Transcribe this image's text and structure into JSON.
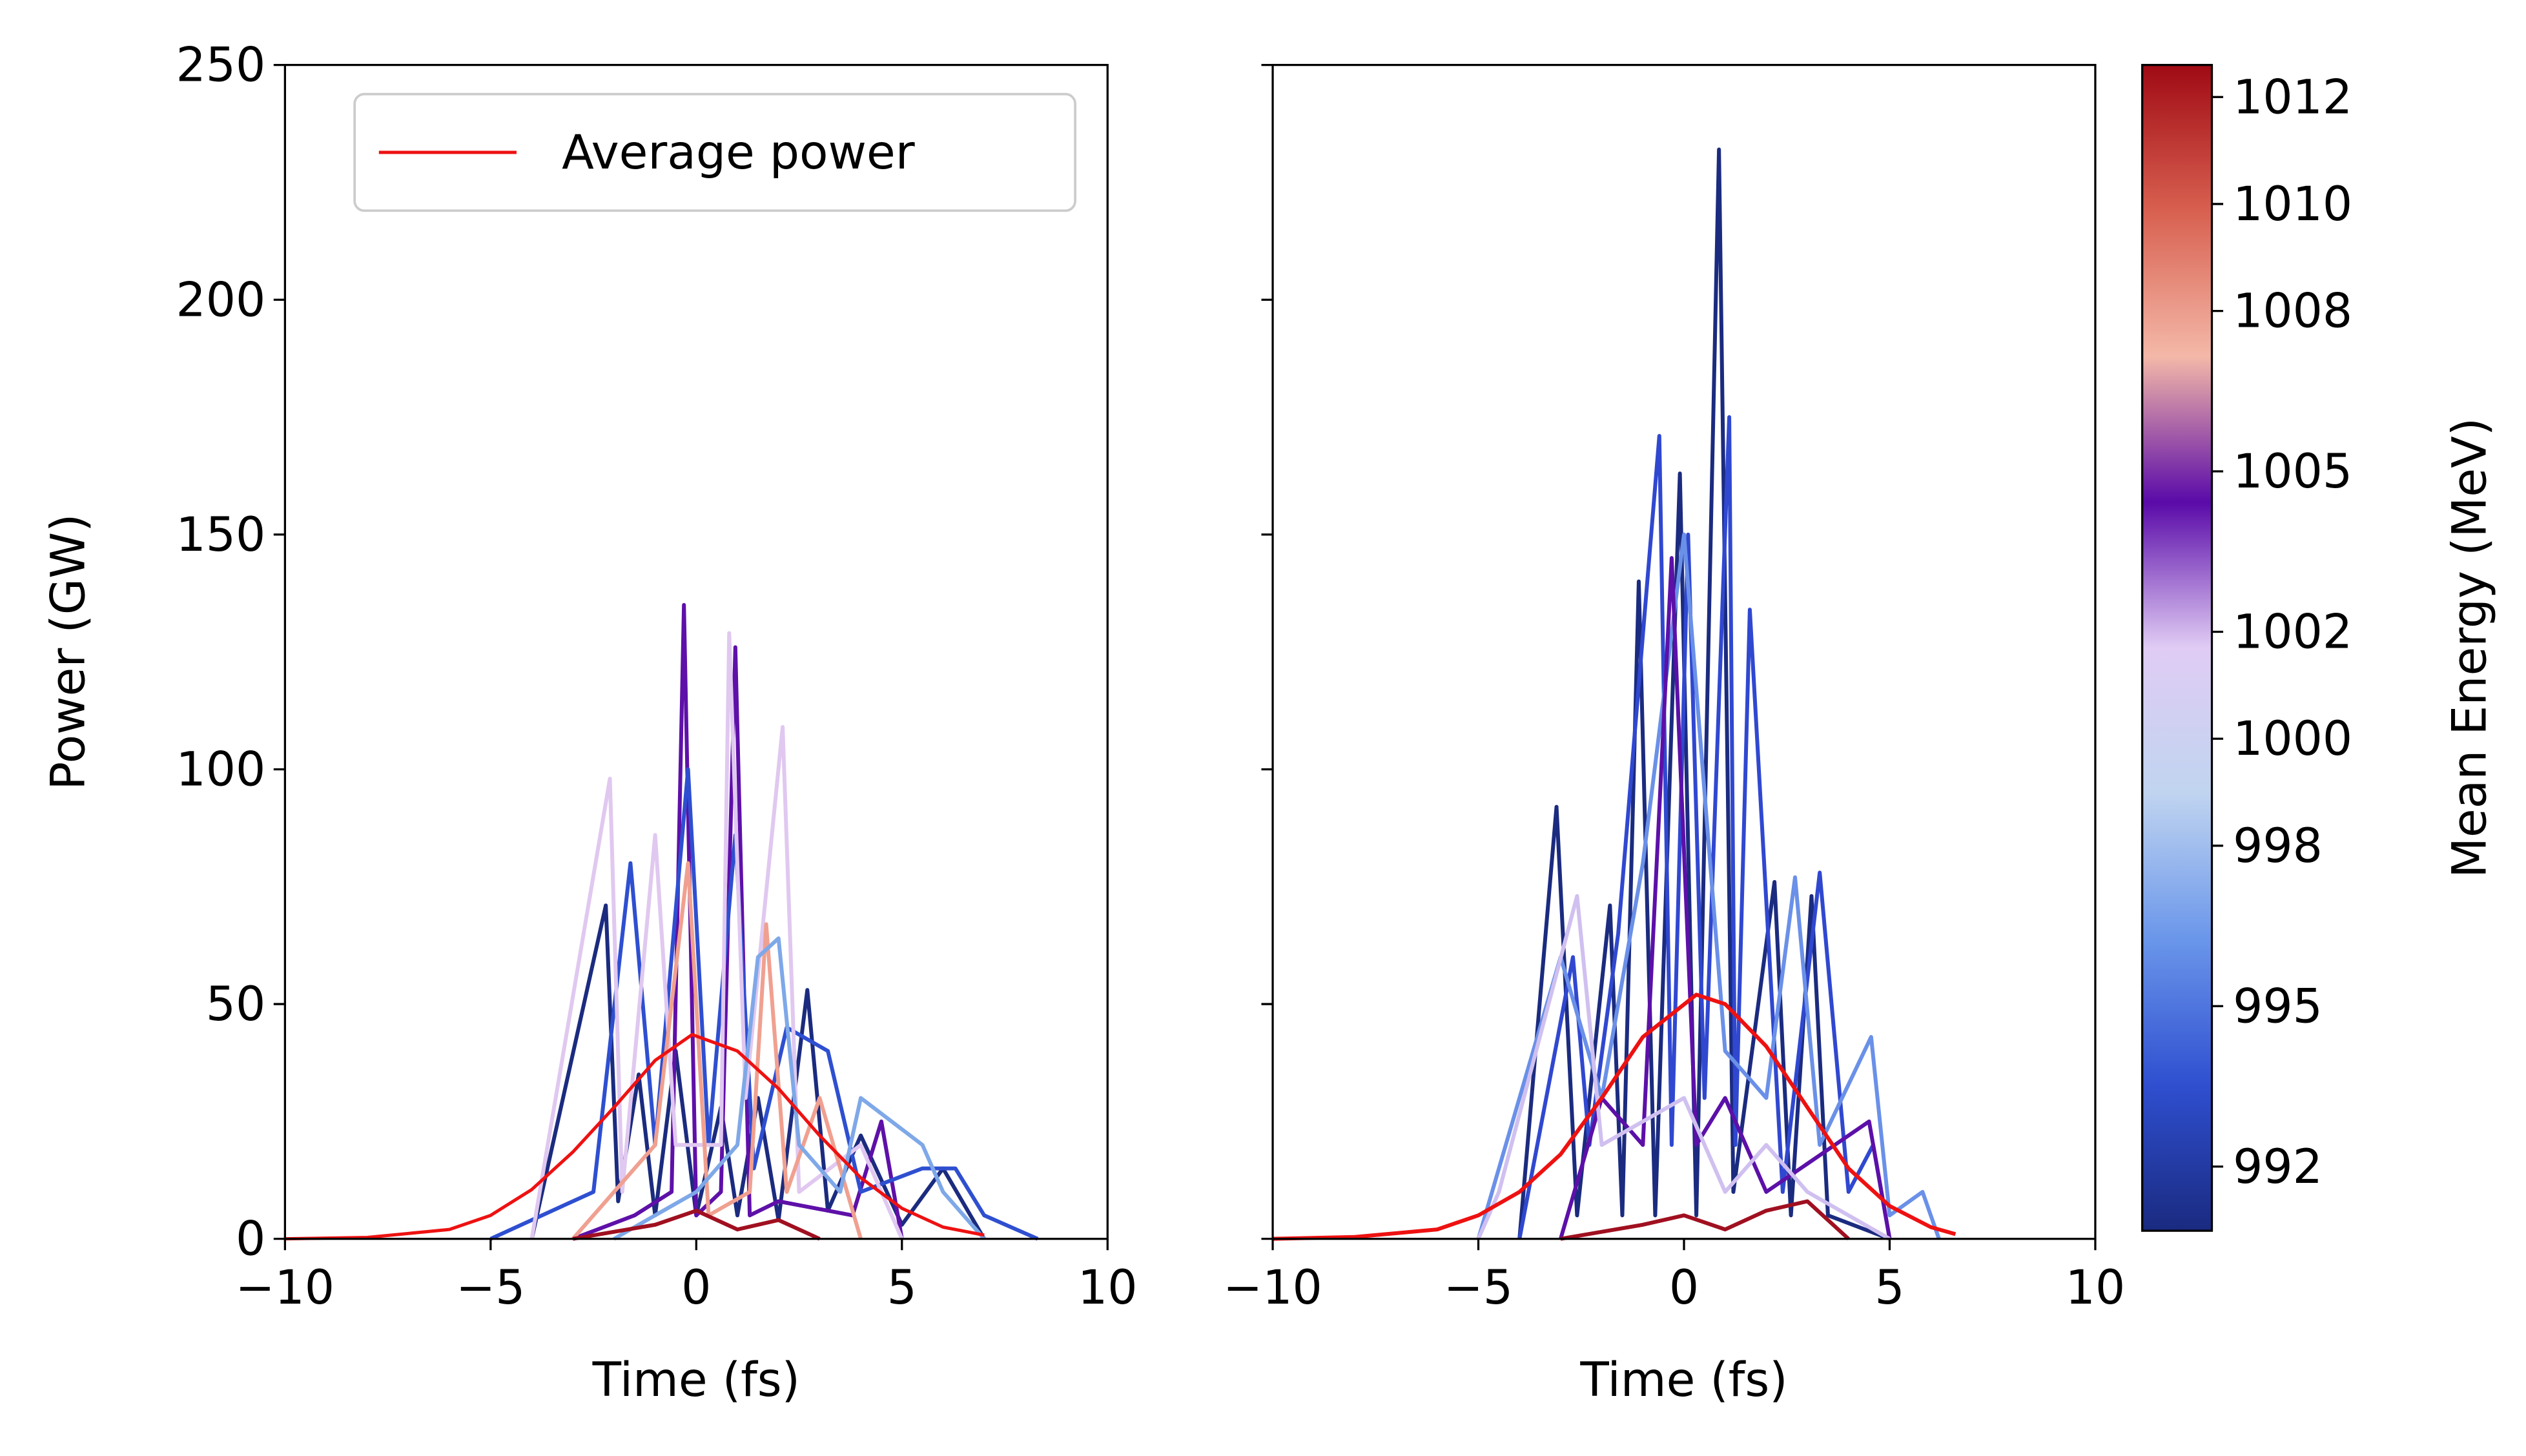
{
  "chart_data": [
    {
      "type": "line",
      "xlabel": "Time (fs)",
      "ylabel": "Power (GW)",
      "xlim": [
        -10,
        10
      ],
      "xticks": [
        {
          "value": -10,
          "label": "−10"
        },
        {
          "value": -5,
          "label": "−5"
        },
        0,
        5,
        10
      ],
      "ylim": [
        0,
        250
      ],
      "yticks": [
        0,
        50,
        100,
        150,
        200,
        250
      ],
      "legend": "upper right",
      "series": [
        {
          "color": "#1b2b7f",
          "x": [
            -4,
            -2.2,
            -1.9,
            -1.4,
            -1.0,
            -0.5,
            0,
            0.6,
            1.0,
            1.5,
            2.0,
            2.7,
            3.2,
            4.0,
            5,
            6,
            7
          ],
          "values": [
            0,
            71,
            8,
            35,
            5,
            40,
            5,
            28,
            5,
            30,
            4,
            53,
            6,
            22,
            3,
            15,
            0
          ]
        },
        {
          "color": "#5e10a8",
          "x": [
            -3,
            -1.5,
            -0.6,
            -0.3,
            0,
            0.6,
            0.95,
            1.3,
            2,
            3.8,
            4.5,
            5
          ],
          "values": [
            0,
            5,
            10,
            135,
            5,
            10,
            126,
            5,
            8,
            5,
            25,
            0
          ]
        },
        {
          "color": "#2e4fd0",
          "x": [
            -5,
            -2.5,
            -1.6,
            -1,
            -0.6,
            -0.2,
            0.3,
            0.95,
            1.4,
            2.2,
            3.2,
            4,
            5.5,
            6.3,
            7,
            8.3
          ],
          "values": [
            0,
            10,
            80,
            20,
            60,
            100,
            20,
            86,
            15,
            45,
            40,
            10,
            15,
            15,
            5,
            0
          ]
        },
        {
          "color": "#e0c8f0",
          "x": [
            -4,
            -2.1,
            -1.8,
            -1,
            -0.5,
            0.6,
            0.8,
            1.2,
            2.1,
            2.5,
            4,
            5
          ],
          "values": [
            0,
            98,
            10,
            86,
            20,
            20,
            129,
            30,
            109,
            10,
            20,
            0
          ]
        },
        {
          "color": "#f0a090",
          "x": [
            -3,
            -1,
            -0.2,
            0.3,
            1.3,
            1.7,
            2.2,
            3,
            4
          ],
          "values": [
            0,
            20,
            80,
            5,
            10,
            67,
            10,
            30,
            0
          ]
        },
        {
          "color": "#7ea8e8",
          "x": [
            -2,
            0,
            1,
            1.5,
            2.0,
            2.5,
            3.5,
            4,
            5.5,
            6,
            7
          ],
          "values": [
            0,
            10,
            20,
            60,
            64,
            20,
            10,
            30,
            20,
            10,
            0
          ]
        },
        {
          "color": "#a01020",
          "x": [
            -3,
            -1,
            0,
            1,
            2,
            3
          ],
          "values": [
            0,
            3,
            6,
            2,
            4,
            0
          ]
        },
        {
          "name": "Average power",
          "color": "#ee1111",
          "x": [
            -10,
            -8,
            -6,
            -5,
            -4,
            -3,
            -2,
            -1,
            -0.1,
            1,
            2,
            3,
            4,
            5,
            6,
            7
          ],
          "values": [
            0,
            0.3,
            2,
            5,
            10.5,
            18.5,
            28,
            38,
            43.5,
            40,
            32,
            22,
            13,
            6.5,
            2.5,
            0.8
          ]
        }
      ]
    },
    {
      "type": "line",
      "xlabel": "Time (fs)",
      "sharey": true,
      "xlim": [
        -10,
        10
      ],
      "xticks": [
        {
          "value": -10,
          "label": "−10"
        },
        {
          "value": -5,
          "label": "−5"
        },
        0,
        5,
        10
      ],
      "ylim": [
        0,
        250
      ],
      "yticks": [
        0,
        50,
        100,
        150,
        200,
        250
      ],
      "series": [
        {
          "color": "#1b2b7f",
          "x": [
            -4,
            -3.1,
            -2.6,
            -1.8,
            -1.5,
            -1.1,
            -0.7,
            -0.1,
            0.3,
            0.85,
            1.2,
            2.2,
            2.6,
            3.1,
            3.5,
            5
          ],
          "values": [
            0,
            92,
            5,
            71,
            5,
            140,
            5,
            163,
            5,
            232,
            10,
            76,
            5,
            73,
            5,
            0
          ]
        },
        {
          "color": "#3048d0",
          "x": [
            -4,
            -2.7,
            -2.3,
            -1.6,
            -0.6,
            -0.3,
            0.1,
            0.5,
            1.1,
            1.25,
            1.6,
            2.4,
            3.3,
            4,
            4.6,
            5
          ],
          "values": [
            0,
            60,
            20,
            65,
            171,
            20,
            150,
            30,
            175,
            20,
            134,
            10,
            78,
            10,
            20,
            0
          ]
        },
        {
          "color": "#6a90e8",
          "x": [
            -5,
            -3,
            -2,
            -1,
            0,
            1,
            2,
            2.7,
            3.3,
            4.55,
            5,
            5.8,
            6.2
          ],
          "values": [
            0,
            60,
            30,
            80,
            150,
            40,
            30,
            77,
            20,
            43,
            5,
            10,
            0
          ]
        },
        {
          "color": "#5c10a8",
          "x": [
            -3,
            -2,
            -1,
            -0.3,
            0.3,
            1,
            2,
            4.5,
            5
          ],
          "values": [
            0,
            30,
            20,
            145,
            20,
            30,
            10,
            25,
            0
          ]
        },
        {
          "color": "#d0c0f0",
          "x": [
            -5,
            -4.5,
            -2.6,
            -2,
            0,
            1,
            2,
            3,
            5
          ],
          "values": [
            0,
            10,
            73,
            20,
            30,
            10,
            20,
            10,
            0
          ]
        },
        {
          "color": "#a01020",
          "x": [
            -3,
            -1,
            0,
            1,
            2,
            3,
            4
          ],
          "values": [
            0,
            3,
            5,
            2,
            6,
            8,
            0
          ]
        },
        {
          "color": "#ee1111",
          "x": [
            -10,
            -8,
            -6,
            -5,
            -4,
            -3,
            -2,
            -1,
            0.3,
            1,
            2,
            3,
            4,
            5,
            6,
            6.6
          ],
          "values": [
            0,
            0.4,
            2,
            5,
            10,
            18,
            30,
            43,
            52,
            50,
            41,
            28,
            15,
            7,
            2.5,
            1
          ]
        }
      ],
      "colorbar": {
        "label": "Mean Energy (MeV)",
        "clim": [
          990.8,
          1012.6
        ],
        "ticks": [
          992,
          995,
          998,
          1000,
          1002,
          1005,
          1008,
          1010,
          1012
        ],
        "colors": [
          "#1a2a80",
          "#2f4fd0",
          "#6a96ea",
          "#c0d4f0",
          "#e0ccf4",
          "#5a0aa8",
          "#f4b8a8",
          "#d86050",
          "#a00a14"
        ]
      }
    }
  ]
}
